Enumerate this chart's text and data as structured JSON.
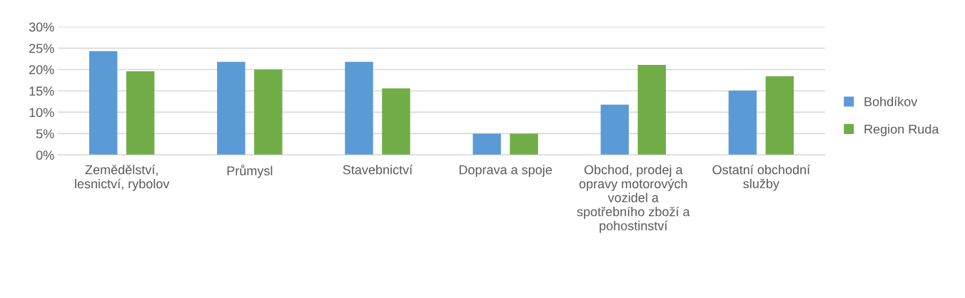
{
  "chart_data": {
    "type": "bar",
    "categories": [
      "Zemědělství, lesnictví, rybolov",
      "Průmysl",
      "Stavebnictví",
      "Doprava a spoje",
      "Obchod, prodej a opravy motorových vozidel a spotřebního zboží a pohostinství",
      "Ostatní obchodní služby"
    ],
    "series": [
      {
        "name": "Bohdíkov",
        "color": "#5b9bd5",
        "values": [
          24.3,
          21.8,
          21.8,
          5.0,
          11.8,
          15.1
        ]
      },
      {
        "name": "Region Ruda",
        "color": "#70ad47",
        "values": [
          19.6,
          20.0,
          15.6,
          5.0,
          21.1,
          18.4
        ]
      }
    ],
    "ylim": [
      0,
      30
    ],
    "yticks": [
      {
        "value": 0,
        "label": "0%"
      },
      {
        "value": 5,
        "label": "5%"
      },
      {
        "value": 10,
        "label": "10%"
      },
      {
        "value": 15,
        "label": "15%"
      },
      {
        "value": 20,
        "label": "20%"
      },
      {
        "value": 25,
        "label": "25%"
      },
      {
        "value": 30,
        "label": "30%"
      }
    ],
    "grid": "y",
    "legend": "right"
  }
}
